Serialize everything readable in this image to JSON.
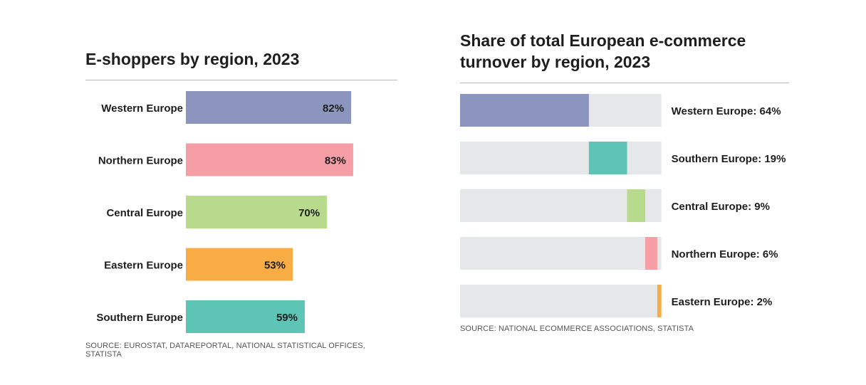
{
  "left_chart": {
    "title": "E-shoppers by region, 2023",
    "source": "SOURCE: EUROSTAT, DATAREPORTAL, NATIONAL STATISTICAL OFFICES, STATISTA"
  },
  "right_chart": {
    "title": "Share of total European e-commerce turnover by region, 2023",
    "source": "SOURCE: NATIONAL ECOMMERCE ASSOCIATIONS, STATISTA"
  },
  "colors": {
    "background_track": "#e6e7e8",
    "divider": "#b9b9b9",
    "text": "#1e1e1e"
  },
  "chart_data": [
    {
      "type": "bar",
      "orientation": "horizontal",
      "title": "E-shoppers by region, 2023",
      "xlim": [
        0,
        100
      ],
      "categories": [
        "Western Europe",
        "Northern Europe",
        "Central Europe",
        "Eastern Europe",
        "Southern Europe"
      ],
      "values": [
        82,
        83,
        70,
        53,
        59
      ],
      "value_labels": [
        "82%",
        "83%",
        "70%",
        "53%",
        "59%"
      ],
      "bar_colors": [
        "#8b95bd",
        "#f59ea6",
        "#b8da8c",
        "#f8ac44",
        "#5ec4b6"
      ],
      "grid": false,
      "legend": "none"
    },
    {
      "type": "bar",
      "orientation": "horizontal",
      "stacked": true,
      "title": "Share of total European e-commerce turnover by region, 2023",
      "xlim": [
        0,
        100
      ],
      "categories": [
        "Western Europe",
        "Southern Europe",
        "Central Europe",
        "Northern Europe",
        "Eastern Europe"
      ],
      "values": [
        64,
        19,
        9,
        6,
        2
      ],
      "value_labels": [
        "Western Europe: 64%",
        "Southern Europe: 19%",
        "Central Europe: 9%",
        "Northern Europe: 6%",
        "Eastern Europe: 2%"
      ],
      "bar_colors": [
        "#8b95bd",
        "#5ec4b6",
        "#b8da8c",
        "#f59ea6",
        "#f8ac44"
      ],
      "grid": false,
      "legend": "none"
    }
  ]
}
